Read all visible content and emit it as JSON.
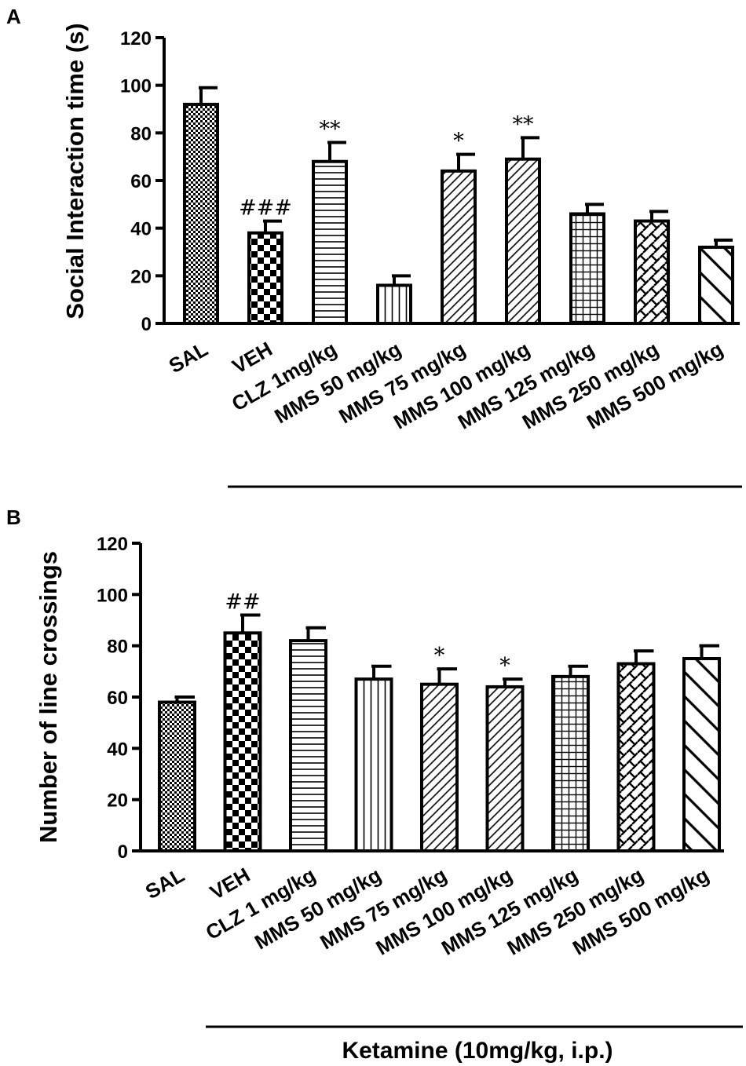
{
  "colors": {
    "ink": "#000000",
    "background": "#ffffff"
  },
  "footer_label": "Ketamine (10mg/kg, i.p.)",
  "chart_data": [
    {
      "panel": "A",
      "type": "bar",
      "title": "",
      "xlabel": "",
      "ylabel": "Social Interaction time (s)",
      "ylim": [
        0,
        120
      ],
      "yticks": [
        0,
        20,
        40,
        60,
        80,
        100,
        120
      ],
      "categories": [
        "SAL",
        "VEH",
        "CLZ 1mg/kg",
        "MMS 50 mg/kg",
        "MMS 75 mg/kg",
        "MMS 100 mg/kg",
        "MMS 125 mg/kg",
        "MMS 250 mg/kg",
        "MMS 500 mg/kg"
      ],
      "values": [
        92,
        38,
        68,
        16,
        64,
        69,
        46,
        43,
        32
      ],
      "errors": [
        7,
        5,
        8,
        4,
        7,
        9,
        4,
        4,
        3
      ],
      "annotations": [
        "",
        "###",
        "**",
        "",
        "*",
        "**",
        "",
        "",
        ""
      ],
      "patterns": [
        "fine-check",
        "checker",
        "horizontal",
        "vertical",
        "diagonal-dense",
        "diagonal-dense",
        "grid",
        "weave",
        "diagonal-wide"
      ]
    },
    {
      "panel": "B",
      "type": "bar",
      "title": "",
      "xlabel": "",
      "ylabel": "Number of line crossings",
      "ylim": [
        0,
        120
      ],
      "yticks": [
        0,
        20,
        40,
        60,
        80,
        100,
        120
      ],
      "categories": [
        "SAL",
        "VEH",
        "CLZ 1 mg/kg",
        "MMS 50 mg/kg",
        "MMS 75 mg/kg",
        "MMS 100 mg/kg",
        "MMS 125 mg/kg",
        "MMS 250 mg/kg",
        "MMS 500 mg/kg"
      ],
      "values": [
        58,
        85,
        82,
        67,
        65,
        64,
        68,
        73,
        75
      ],
      "errors": [
        2,
        7,
        5,
        5,
        6,
        3,
        4,
        5,
        5
      ],
      "annotations": [
        "",
        "##",
        "",
        "",
        "*",
        "*",
        "",
        "",
        ""
      ],
      "patterns": [
        "fine-check",
        "checker",
        "horizontal",
        "vertical",
        "diagonal-dense",
        "diagonal-dense",
        "grid",
        "weave",
        "diagonal-wide"
      ]
    }
  ]
}
